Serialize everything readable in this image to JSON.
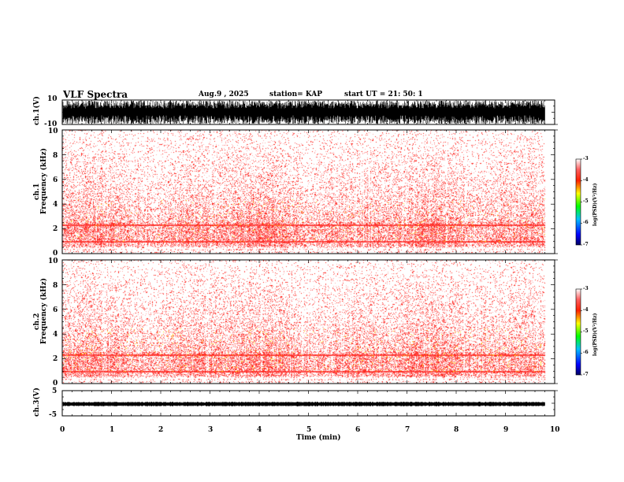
{
  "header": {
    "title": "VLF Spectra",
    "date": "Aug.9 , 2025",
    "station": "station= KAP",
    "start": "start UT = 21: 50: 1"
  },
  "chart_data": [
    {
      "type": "line",
      "name": "ch1-waveform",
      "ylabel": "ch.1(V)",
      "ylim": [
        -10,
        10
      ],
      "yticks": [
        "10",
        "-10"
      ],
      "xlim": [
        0,
        10
      ]
    },
    {
      "type": "heatmap",
      "name": "ch1-spectrogram",
      "ylabel": "Frequency (kHz)",
      "channel_label": "ch.1",
      "ylim": [
        0,
        10
      ],
      "yticks": [
        "0",
        "2",
        "4",
        "6",
        "8",
        "10"
      ],
      "xlim": [
        0,
        10
      ],
      "colorbar": {
        "label": "log(PSD)(V²/Hz)",
        "ticks": [
          "-3",
          "-4",
          "-5",
          "-6",
          "-7"
        ],
        "range": [
          -7,
          -3
        ]
      }
    },
    {
      "type": "heatmap",
      "name": "ch2-spectrogram",
      "ylabel": "Frequency (kHz)",
      "channel_label": "ch.2",
      "ylim": [
        0,
        10
      ],
      "yticks": [
        "0",
        "2",
        "4",
        "6",
        "8",
        "10"
      ],
      "xlim": [
        0,
        10
      ],
      "colorbar": {
        "label": "log(PSD)(V²/Hz)",
        "ticks": [
          "-3",
          "-4",
          "-5",
          "-6",
          "-7"
        ],
        "range": [
          -7,
          -3
        ]
      }
    },
    {
      "type": "line",
      "name": "ch3-waveform",
      "ylabel": "ch.3(V)",
      "ylim": [
        -5,
        5
      ],
      "yticks": [
        "5",
        "-5"
      ],
      "xlim": [
        0,
        10
      ],
      "xlabel": "Time (min)",
      "xticks": [
        "0",
        "1",
        "2",
        "3",
        "4",
        "5",
        "6",
        "7",
        "8",
        "9",
        "10"
      ]
    }
  ],
  "colors": {
    "low": "#ffffff",
    "mid": "#ff2020",
    "high": "#ffff00",
    "ink": "#000000"
  }
}
